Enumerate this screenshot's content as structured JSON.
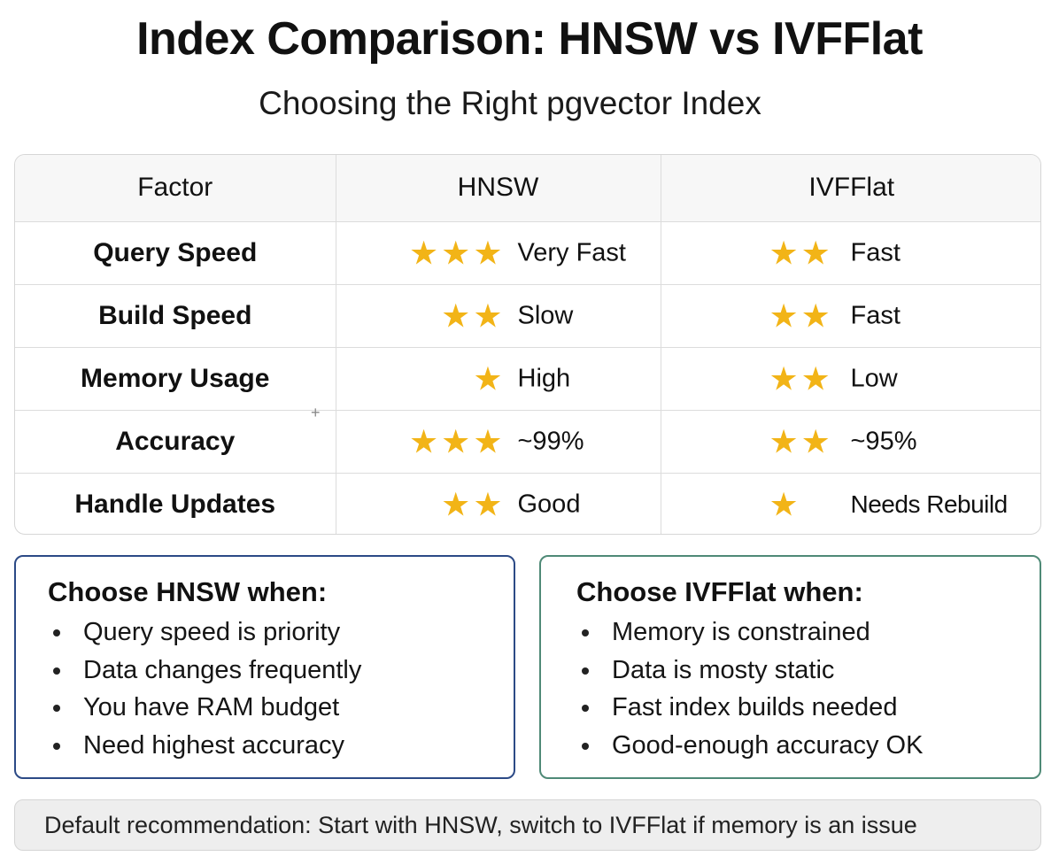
{
  "title": "Index Comparison: HNSW vs IVFFlat",
  "subtitle": "Choosing the Right pgvector Index",
  "table": {
    "headers": [
      "Factor",
      "HNSW",
      "IVFFlat"
    ],
    "rows": [
      {
        "factor": "Query Speed",
        "hnsw": {
          "stars": 3,
          "text": "Very Fast"
        },
        "ivfflat": {
          "stars": 2,
          "text": "Fast"
        }
      },
      {
        "factor": "Build Speed",
        "hnsw": {
          "stars": 2,
          "text": "Slow"
        },
        "ivfflat": {
          "stars": 2,
          "text": "Fast"
        }
      },
      {
        "factor": "Memory Usage",
        "hnsw": {
          "stars": 1,
          "text": "High"
        },
        "ivfflat": {
          "stars": 2,
          "text": "Low"
        }
      },
      {
        "factor": "Accuracy",
        "hnsw": {
          "stars": 3,
          "text": "~99%"
        },
        "ivfflat": {
          "stars": 2,
          "text": "~95%"
        }
      },
      {
        "factor": "Handle Updates",
        "hnsw": {
          "stars": 2,
          "text": "Good"
        },
        "ivfflat": {
          "stars": 1,
          "text": "Needs Rebuild"
        }
      }
    ]
  },
  "hnsw_card": {
    "heading": "Choose HNSW when:",
    "items": [
      "Query speed is priority",
      "Data changes frequently",
      "You have RAM budget",
      "Need highest accuracy"
    ]
  },
  "ivfflat_card": {
    "heading": "Choose IVFFlat when:",
    "items": [
      "Memory is constrained",
      "Data is mosty static",
      "Fast index builds needed",
      "Good-enough accuracy OK"
    ]
  },
  "footer": "Default recommendation: Start with HNSW, switch to IVFFlat if memory is an issue",
  "colors": {
    "star": "#f2b417",
    "hnsw_border": "#2c4a86",
    "ivfflat_border": "#4f8a77"
  },
  "icons": {
    "rating": "star-icon",
    "bullet": "bullet-dot"
  }
}
